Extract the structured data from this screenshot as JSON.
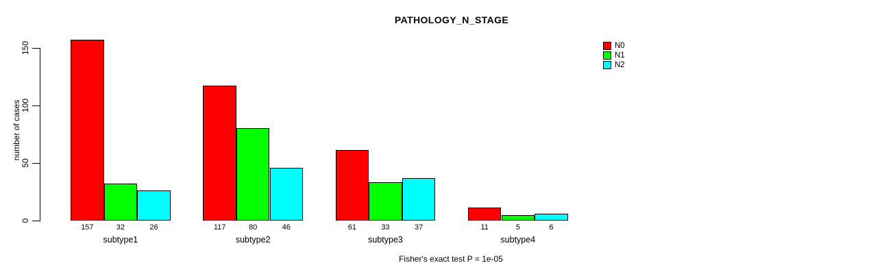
{
  "chart_data": {
    "type": "bar",
    "title": "PATHOLOGY_N_STAGE",
    "xlabel": "",
    "ylabel": "number of cases",
    "categories": [
      "subtype1",
      "subtype2",
      "subtype3",
      "subtype4"
    ],
    "series": [
      {
        "name": "N0",
        "color": "#ff0000",
        "values": [
          157,
          117,
          61,
          11
        ]
      },
      {
        "name": "N1",
        "color": "#00ff00",
        "values": [
          32,
          80,
          33,
          5
        ]
      },
      {
        "name": "N2",
        "color": "#00ffff",
        "values": [
          26,
          46,
          37,
          6
        ]
      }
    ],
    "yticks": [
      0,
      50,
      100,
      150
    ],
    "ylim": [
      0,
      157
    ],
    "bar_value_labels": true,
    "grid": false,
    "legend_position": "top-right",
    "annotation": "Fisher's exact test P = 1e-05"
  },
  "colors": {
    "background": "#ffffff",
    "axis": "#000000",
    "text": "#000000"
  }
}
